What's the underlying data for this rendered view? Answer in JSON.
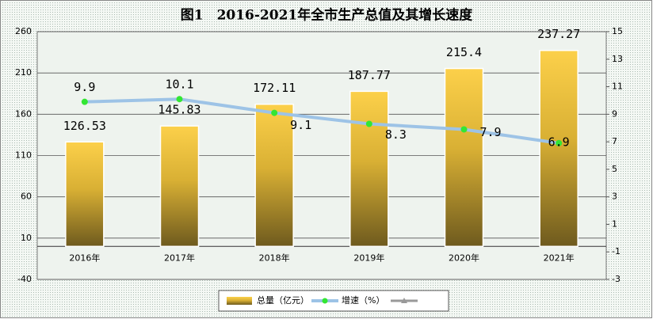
{
  "chart_data": {
    "type": "combo",
    "title": "图1　2016-2021年全市生产总值及其增长速度",
    "categories": [
      "2016年",
      "2017年",
      "2018年",
      "2019年",
      "2020年",
      "2021年"
    ],
    "series": [
      {
        "name": "总量（亿元）",
        "type": "bar",
        "color": "#f2c641",
        "values": [
          126.53,
          145.83,
          172.11,
          187.77,
          215.4,
          237.27
        ]
      },
      {
        "name": "增速（%）",
        "type": "line",
        "axis": "y2",
        "color": "#9dc3e6",
        "values": [
          9.9,
          10.1,
          9.1,
          8.3,
          7.9,
          6.9
        ]
      }
    ],
    "ylim": [
      -40,
      260
    ],
    "yticks": [
      -40,
      10,
      60,
      110,
      160,
      210,
      260
    ],
    "y2lim": [
      -3,
      15
    ],
    "y2ticks": [
      -3,
      -1,
      1,
      3,
      5,
      7,
      9,
      11,
      13,
      15
    ],
    "grid": true,
    "legend": "bottom"
  }
}
